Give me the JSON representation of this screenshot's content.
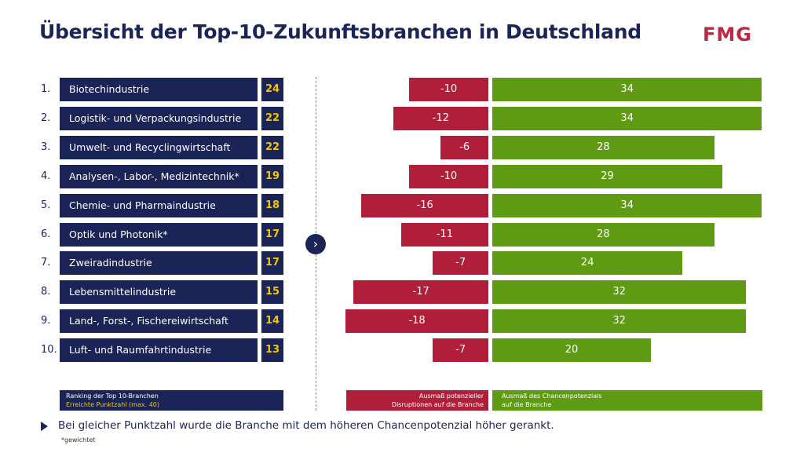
{
  "title": "Übersicht der Top-10-Zukunftsbranchen in Deutschland",
  "logo": "FMG",
  "colors": {
    "navy": "#1b2456",
    "red": "#b01e3a",
    "green": "#5e9a12",
    "score": "#f3c400"
  },
  "chart_data": {
    "type": "bar",
    "categories": [
      "Biotechindustrie",
      "Logistik- und Verpackungsindustrie",
      "Umwelt- und Recyclingwirtschaft",
      "Analysen-, Labor-, Medizintechnik*",
      "Chemie- und Pharmaindustrie",
      "Optik und Photonik*",
      "Zweiradindustrie",
      "Lebensmittelindustrie",
      "Land-, Forst-, Fischereiwirtschaft",
      "Luft- und Raumfahrtindustrie"
    ],
    "ranks": [
      "1.",
      "2.",
      "3.",
      "4.",
      "5.",
      "6.",
      "7.",
      "8.",
      "9.",
      "10."
    ],
    "scores": [
      "24",
      "22",
      "22",
      "19",
      "18",
      "17",
      "17",
      "15",
      "14",
      "13"
    ],
    "series": [
      {
        "name": "Ausmaß potenzieller Disruptionen auf die Branche",
        "values": [
          -10,
          -12,
          -6,
          -10,
          -16,
          -11,
          -7,
          -17,
          -18,
          -7
        ]
      },
      {
        "name": "Ausmaß des Chancenpotenzials auf die Branche",
        "values": [
          34,
          34,
          28,
          29,
          34,
          28,
          24,
          32,
          32,
          20
        ]
      }
    ]
  },
  "legend": {
    "ranking_line1": "Ranking der Top 10-Branchen",
    "ranking_line2": "Erreichte Punktzahl (max. 40)",
    "disruption_line1": "Ausmaß potenzieller",
    "disruption_line2": "Disruptionen auf die Branche",
    "chance_line1": "Ausmaß des Chancenpotenzials",
    "chance_line2": "auf die Branche"
  },
  "footer": "Bei gleicher Punktzahl wurde die Branche mit dem höheren Chancenpotenzial höher gerankt.",
  "note": "*gewichtet"
}
